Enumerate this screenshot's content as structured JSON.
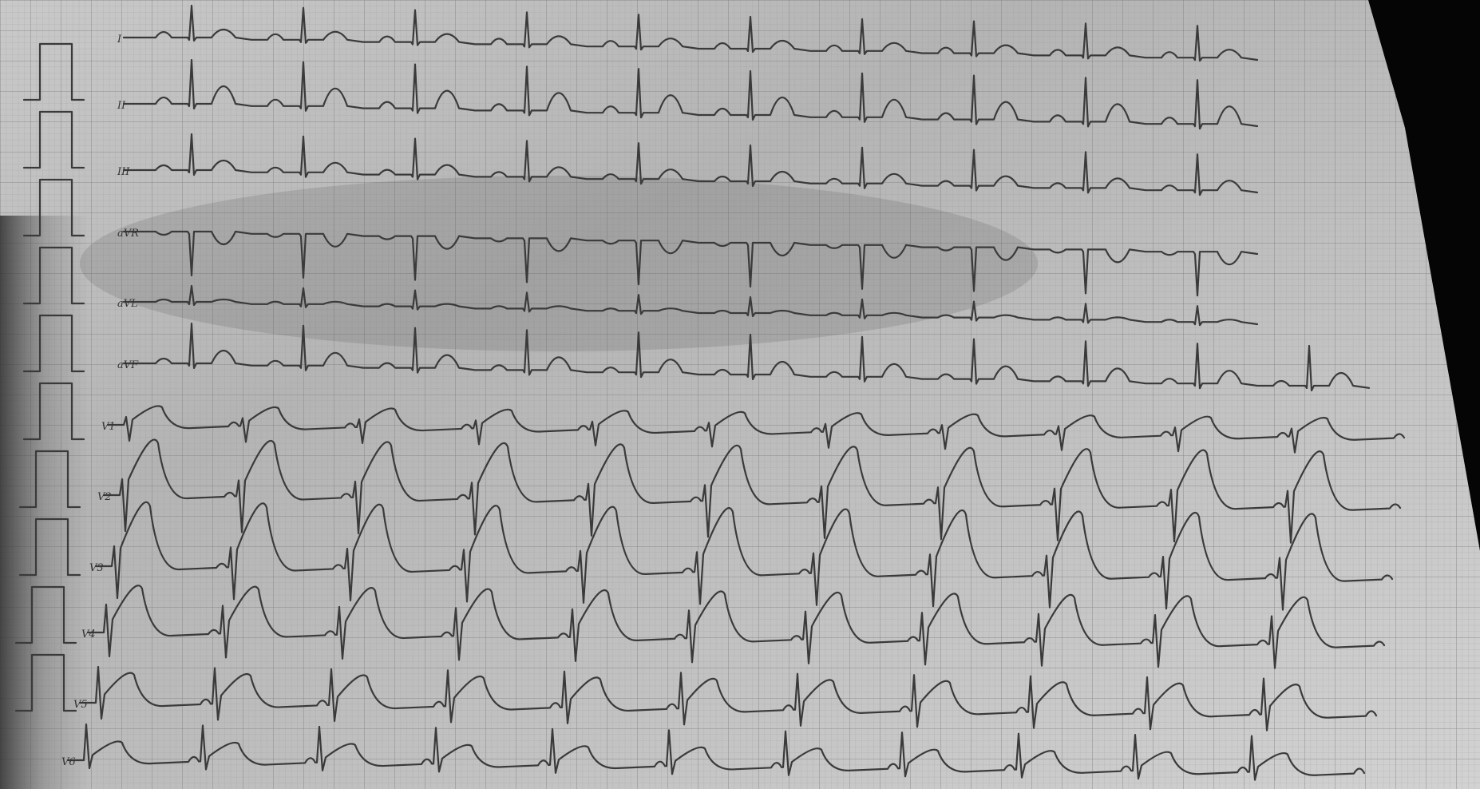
{
  "leads": [
    {
      "label": "I"
    },
    {
      "label": "II"
    },
    {
      "label": "III"
    },
    {
      "label": "aVR"
    },
    {
      "label": "aVL"
    },
    {
      "label": "aVF"
    },
    {
      "label": "V1"
    },
    {
      "label": "V2"
    },
    {
      "label": "V3"
    },
    {
      "label": "V4"
    },
    {
      "label": "V5"
    },
    {
      "label": "V6"
    }
  ]
}
